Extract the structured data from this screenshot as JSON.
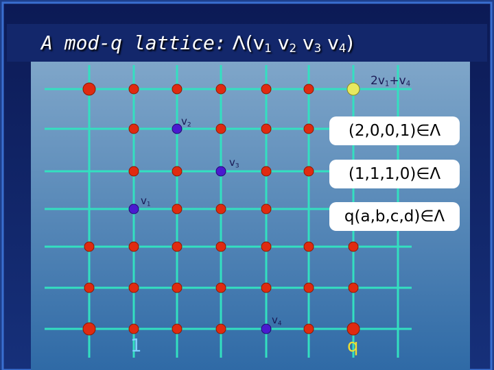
{
  "title": {
    "text": "A mod-q lattice:",
    "open": "Λ(",
    "vectors": [
      {
        "base": "v",
        "sub": "1"
      },
      {
        "base": "v",
        "sub": "2"
      },
      {
        "base": "v",
        "sub": "3"
      },
      {
        "base": "v",
        "sub": "4"
      }
    ],
    "close": ")"
  },
  "labels": {
    "sum": {
      "a": "2v",
      "a_sub": "1",
      "b": "+v",
      "b_sub": "4"
    },
    "v1": {
      "base": "v",
      "sub": "1"
    },
    "v2": {
      "base": "v",
      "sub": "2"
    },
    "v3": {
      "base": "v",
      "sub": "3"
    },
    "v4": {
      "base": "v",
      "sub": "4"
    },
    "one": "1",
    "q": "q"
  },
  "boxes": [
    "(2,0,0,1)∈Λ",
    "(1,1,1,0)∈Λ",
    "q(a,b,c,d)∈Λ"
  ]
}
